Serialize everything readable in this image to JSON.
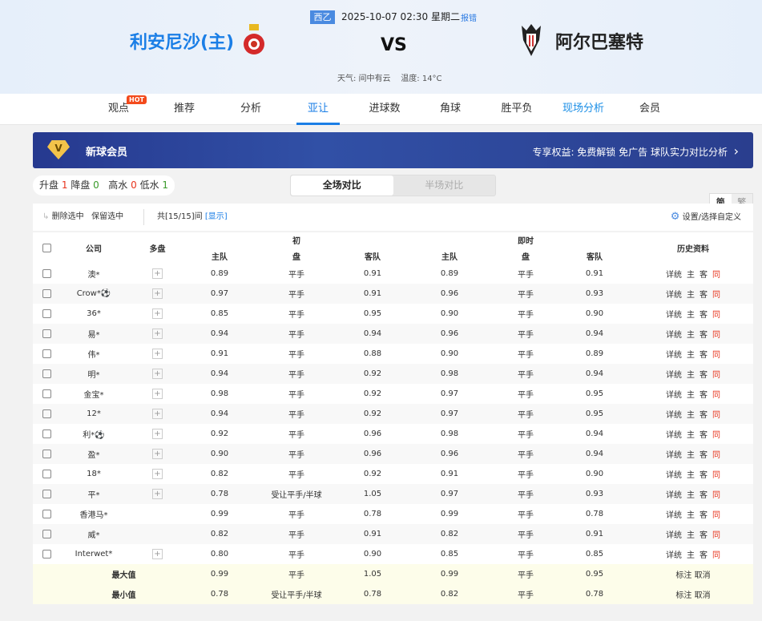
{
  "match": {
    "league": "西乙",
    "datetime": "2025-10-07 02:30 星期二",
    "report": "报错",
    "home": "利安尼沙(主)",
    "away": "阿尔巴塞特",
    "vs": "VS",
    "weather": "天气: 间中有云",
    "temperature": "温度: 14°C"
  },
  "nav": {
    "tabs": [
      "观点",
      "推荐",
      "分析",
      "亚让",
      "进球数",
      "角球",
      "胜平负",
      "现场分析",
      "会员"
    ],
    "active": "亚让",
    "hot": "HOT",
    "lang": [
      "简",
      "繁"
    ]
  },
  "banner": {
    "title": "新球会员",
    "badge": "V",
    "benefits": "专享权益: 免费解锁 免广告 球队实力对比分析",
    "chevron": "›"
  },
  "stats": {
    "up_label": "升盘",
    "up": "1",
    "down_label": "降盘",
    "down": "0",
    "high_label": "高水",
    "high": "0",
    "low_label": "低水",
    "low": "1"
  },
  "segment": {
    "full": "全场对比",
    "half": "半场对比"
  },
  "toolbar": {
    "delete": "删除选中",
    "keep": "保留选中",
    "count": "共[15/15]间",
    "show": "[显示]",
    "settings": "设置/选择自定义"
  },
  "table": {
    "headers": {
      "company": "公司",
      "multi": "多盘",
      "initial": "初",
      "live": "即时",
      "home": "主队",
      "pan": "盘",
      "away": "客队",
      "history": "历史资料"
    },
    "history_links": [
      "详统",
      "主",
      "客",
      "同"
    ],
    "rows": [
      [
        "澳*",
        true,
        "0.89",
        "平手",
        "0.91",
        "0.89",
        "平手",
        "0.91"
      ],
      [
        "Crow*⚽",
        true,
        "0.97",
        "平手",
        "0.91",
        "0.96",
        "平手",
        "0.93"
      ],
      [
        "36*",
        true,
        "0.85",
        "平手",
        "0.95",
        "0.90",
        "平手",
        "0.90"
      ],
      [
        "易*",
        true,
        "0.94",
        "平手",
        "0.94",
        "0.96",
        "平手",
        "0.94"
      ],
      [
        "伟*",
        true,
        "0.91",
        "平手",
        "0.88",
        "0.90",
        "平手",
        "0.89"
      ],
      [
        "明*",
        true,
        "0.94",
        "平手",
        "0.92",
        "0.98",
        "平手",
        "0.94"
      ],
      [
        "金宝*",
        true,
        "0.98",
        "平手",
        "0.92",
        "0.97",
        "平手",
        "0.95"
      ],
      [
        "12*",
        true,
        "0.94",
        "平手",
        "0.92",
        "0.97",
        "平手",
        "0.95"
      ],
      [
        "利*⚽",
        true,
        "0.92",
        "平手",
        "0.96",
        "0.98",
        "平手",
        "0.94"
      ],
      [
        "盈*",
        true,
        "0.90",
        "平手",
        "0.96",
        "0.96",
        "平手",
        "0.94"
      ],
      [
        "18*",
        true,
        "0.82",
        "平手",
        "0.92",
        "0.91",
        "平手",
        "0.90"
      ],
      [
        "平*",
        true,
        "0.78",
        "受让平手/半球",
        "1.05",
        "0.97",
        "平手",
        "0.93"
      ],
      [
        "香港马*",
        false,
        "0.99",
        "平手",
        "0.78",
        "0.99",
        "平手",
        "0.78"
      ],
      [
        "威*",
        false,
        "0.82",
        "平手",
        "0.91",
        "0.82",
        "平手",
        "0.91"
      ],
      [
        "Interwet*",
        true,
        "0.80",
        "平手",
        "0.90",
        "0.85",
        "平手",
        "0.85"
      ]
    ],
    "summary": [
      {
        "label": "最大值",
        "values": [
          "0.99",
          "平手",
          "1.05",
          "0.99",
          "平手",
          "0.95"
        ],
        "actions": "标注 取消"
      },
      {
        "label": "最小值",
        "values": [
          "0.78",
          "受让平手/半球",
          "0.78",
          "0.82",
          "平手",
          "0.78"
        ],
        "actions": "标注 取消"
      }
    ]
  }
}
